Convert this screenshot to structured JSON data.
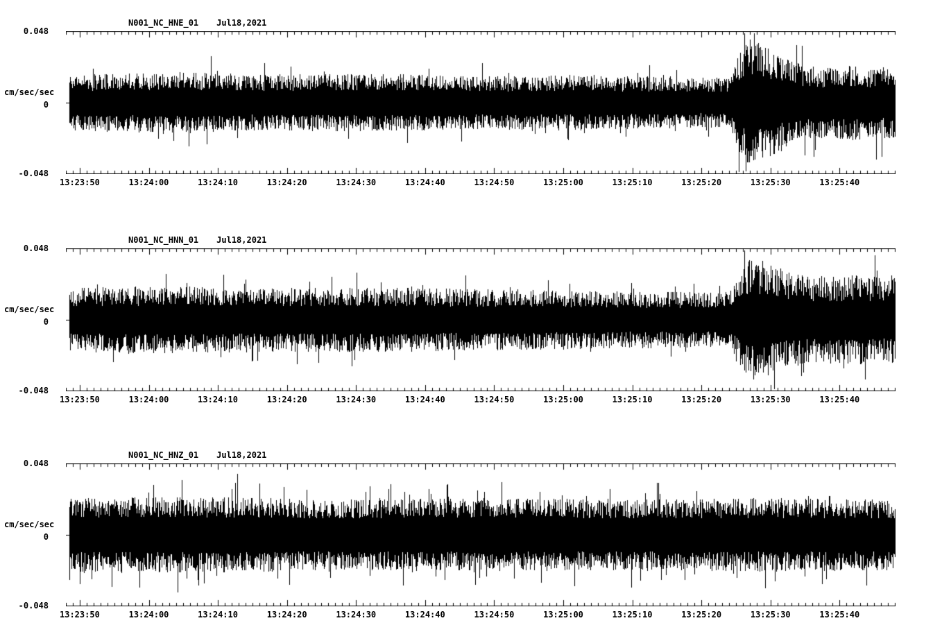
{
  "page": {
    "background": "#ffffff",
    "trace_color": "#000000"
  },
  "chart_data": [
    {
      "type": "line",
      "subtype": "seismogram",
      "title": "N001_NC_HNE_01",
      "date": "Jul18,2021",
      "ylabel": "cm/sec/sec",
      "ylim": [
        -0.048,
        0.048
      ],
      "y_ticks": [
        "0.048",
        "0",
        "-0.048"
      ],
      "x_ticks": [
        "13:23:50",
        "13:24:00",
        "13:24:10",
        "13:24:20",
        "13:24:30",
        "13:24:40",
        "13:24:50",
        "13:25:00",
        "13:25:10",
        "13:25:20",
        "13:25:30",
        "13:25:40"
      ],
      "x_start": "13:23:48",
      "x_end": "13:25:48",
      "duration_seconds": 120,
      "first_tick_offset_seconds": 2,
      "major_tick_interval_seconds": 10,
      "minor_tick_interval_seconds": 1,
      "description": "High-frequency ground acceleration noise with an amplitude burst near 13:25:25 decaying into elevated coda",
      "envelope": {
        "t_seconds": [
          0,
          15,
          30,
          45,
          60,
          75,
          90,
          96,
          97.5,
          99,
          101,
          103,
          106,
          110,
          114,
          118,
          120
        ],
        "amplitude": [
          0.019,
          0.021,
          0.019,
          0.02,
          0.018,
          0.019,
          0.017,
          0.017,
          0.034,
          0.044,
          0.042,
          0.033,
          0.027,
          0.024,
          0.026,
          0.024,
          0.026
        ]
      },
      "core_fraction": 0.42,
      "spike_probability": 0.035,
      "seed": 11
    },
    {
      "type": "line",
      "subtype": "seismogram",
      "title": "N001_NC_HNN_01",
      "date": "Jul18,2021",
      "ylabel": "cm/sec/sec",
      "ylim": [
        -0.048,
        0.048
      ],
      "y_ticks": [
        "0.048",
        "0",
        "-0.048"
      ],
      "x_ticks": [
        "13:23:50",
        "13:24:00",
        "13:24:10",
        "13:24:20",
        "13:24:30",
        "13:24:40",
        "13:24:50",
        "13:25:00",
        "13:25:10",
        "13:25:20",
        "13:25:30",
        "13:25:40"
      ],
      "x_start": "13:23:48",
      "x_end": "13:25:48",
      "duration_seconds": 120,
      "first_tick_offset_seconds": 2,
      "major_tick_interval_seconds": 10,
      "minor_tick_interval_seconds": 1,
      "description": "High-frequency ground acceleration noise with an amplitude burst near 13:25:25 and sustained elevated oscillation to end of record",
      "envelope": {
        "t_seconds": [
          0,
          15,
          30,
          45,
          60,
          75,
          90,
          96,
          97.5,
          99,
          101,
          104,
          107,
          110,
          114,
          118,
          120
        ],
        "amplitude": [
          0.022,
          0.023,
          0.022,
          0.022,
          0.021,
          0.02,
          0.019,
          0.019,
          0.03,
          0.042,
          0.04,
          0.034,
          0.03,
          0.029,
          0.031,
          0.029,
          0.032
        ]
      },
      "core_fraction": 0.42,
      "spike_probability": 0.03,
      "seed": 22
    },
    {
      "type": "line",
      "subtype": "seismogram",
      "title": "N001_NC_HNZ_01",
      "date": "Jul18,2021",
      "ylabel": "cm/sec/sec",
      "ylim": [
        -0.048,
        0.048
      ],
      "y_ticks": [
        "0.048",
        "0",
        "-0.048"
      ],
      "x_ticks": [
        "13:23:50",
        "13:24:00",
        "13:24:10",
        "13:24:20",
        "13:24:30",
        "13:24:40",
        "13:24:50",
        "13:25:00",
        "13:25:10",
        "13:25:20",
        "13:25:30",
        "13:25:40"
      ],
      "x_start": "13:23:48",
      "x_end": "13:25:48",
      "duration_seconds": 120,
      "first_tick_offset_seconds": 2,
      "major_tick_interval_seconds": 10,
      "minor_tick_interval_seconds": 1,
      "description": "Dense high-frequency vertical-component noise of roughly constant amplitude with frequent isolated spikes",
      "envelope": {
        "t_seconds": [
          0,
          20,
          40,
          60,
          80,
          100,
          120
        ],
        "amplitude": [
          0.025,
          0.026,
          0.024,
          0.025,
          0.024,
          0.025,
          0.024
        ]
      },
      "core_fraction": 0.46,
      "spike_probability": 0.06,
      "seed": 33
    }
  ]
}
